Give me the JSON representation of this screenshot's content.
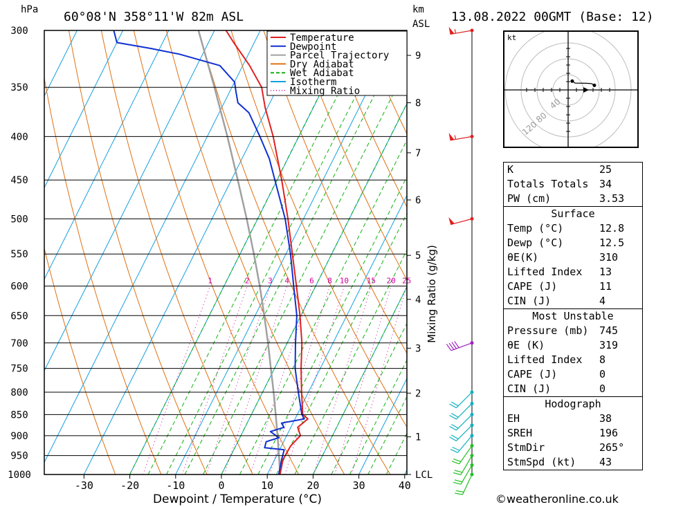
{
  "header": {
    "pressure_unit": "hPa",
    "location": "60°08'N 358°11'W 82m ASL",
    "km_label": "km",
    "asl_label": "ASL",
    "datetime": "13.08.2022 00GMT (Base: 12)"
  },
  "credit": "©weatheronline.co.uk",
  "colors": {
    "temperature": "#e02020",
    "dewpoint": "#1030d0",
    "parcel": "#a0a0a0",
    "dry_adiabat": "#e07010",
    "wet_adiabat": "#10b010",
    "isotherm": "#10a0e0",
    "mixing_ratio": "#d000a0"
  },
  "chart_data": {
    "type": "skew-t",
    "xlabel": "Dewpoint / Temperature (°C)",
    "ylabel_left": "hPa",
    "ylabel_right": "Mixing Ratio (g/kg)",
    "pressure_levels": [
      300,
      350,
      400,
      450,
      500,
      550,
      600,
      650,
      700,
      750,
      800,
      850,
      900,
      950,
      1000
    ],
    "temperature_ticks": [
      -30,
      -20,
      -10,
      0,
      10,
      20,
      30,
      40
    ],
    "km_ticks": [
      {
        "label": "9",
        "p": 321
      },
      {
        "label": "8",
        "p": 365
      },
      {
        "label": "7",
        "p": 418
      },
      {
        "label": "6",
        "p": 475
      },
      {
        "label": "5",
        "p": 552
      },
      {
        "label": "4",
        "p": 622
      },
      {
        "label": "3",
        "p": 710
      },
      {
        "label": "2",
        "p": 802
      },
      {
        "label": "1",
        "p": 903
      },
      {
        "label": "LCL",
        "p": 1000
      }
    ],
    "mixing_ratio_labels": [
      "1",
      "2",
      "3",
      "4",
      "6",
      "8",
      "10",
      "15",
      "20",
      "25"
    ],
    "legend": [
      {
        "name": "Temperature",
        "key": "temperature"
      },
      {
        "name": "Dewpoint",
        "key": "dewpoint"
      },
      {
        "name": "Parcel Trajectory",
        "key": "parcel"
      },
      {
        "name": "Dry Adiabat",
        "key": "dry_adiabat"
      },
      {
        "name": "Wet Adiabat",
        "key": "wet_adiabat"
      },
      {
        "name": "Isotherm",
        "key": "isotherm"
      },
      {
        "name": "Mixing Ratio",
        "key": "mixing_ratio"
      }
    ],
    "series": [
      {
        "name": "Temperature",
        "key": "temperature",
        "points": [
          [
            1000,
            12.8
          ],
          [
            960,
            11.8
          ],
          [
            925,
            12.0
          ],
          [
            900,
            13.0
          ],
          [
            880,
            11.5
          ],
          [
            860,
            12.8
          ],
          [
            850,
            11.2
          ],
          [
            800,
            8.5
          ],
          [
            750,
            5.8
          ],
          [
            700,
            3.2
          ],
          [
            650,
            -0.2
          ],
          [
            600,
            -4.2
          ],
          [
            550,
            -8.6
          ],
          [
            500,
            -13.4
          ],
          [
            450,
            -19.0
          ],
          [
            400,
            -25.6
          ],
          [
            370,
            -30.5
          ],
          [
            350,
            -33.5
          ],
          [
            330,
            -38.5
          ],
          [
            310,
            -44.5
          ],
          [
            300,
            -47.5
          ]
        ]
      },
      {
        "name": "Dewpoint",
        "key": "dewpoint",
        "points": [
          [
            1000,
            12.5
          ],
          [
            960,
            11.5
          ],
          [
            935,
            11.0
          ],
          [
            930,
            6.5
          ],
          [
            915,
            6.2
          ],
          [
            905,
            8.5
          ],
          [
            890,
            6.0
          ],
          [
            880,
            8.5
          ],
          [
            870,
            7.5
          ],
          [
            860,
            12.0
          ],
          [
            850,
            11.0
          ],
          [
            800,
            7.8
          ],
          [
            750,
            4.5
          ],
          [
            700,
            1.8
          ],
          [
            650,
            -0.9
          ],
          [
            600,
            -4.8
          ],
          [
            550,
            -9.0
          ],
          [
            500,
            -14.0
          ],
          [
            450,
            -20.5
          ],
          [
            425,
            -24.0
          ],
          [
            400,
            -28.5
          ],
          [
            375,
            -33.5
          ],
          [
            365,
            -37.0
          ],
          [
            355,
            -38.5
          ],
          [
            345,
            -40.0
          ],
          [
            330,
            -45.0
          ],
          [
            320,
            -55.0
          ],
          [
            315,
            -62.0
          ],
          [
            310,
            -70.0
          ],
          [
            300,
            -72.0
          ]
        ]
      },
      {
        "name": "Parcel Trajectory",
        "key": "parcel",
        "points": [
          [
            1000,
            12.8
          ],
          [
            950,
            10.5
          ],
          [
            900,
            8.0
          ],
          [
            850,
            5.3
          ],
          [
            800,
            2.4
          ],
          [
            750,
            -0.8
          ],
          [
            700,
            -4.2
          ],
          [
            650,
            -8.0
          ],
          [
            600,
            -12.2
          ],
          [
            550,
            -17.0
          ],
          [
            500,
            -22.4
          ],
          [
            450,
            -28.6
          ],
          [
            400,
            -35.6
          ],
          [
            350,
            -43.8
          ],
          [
            300,
            -53.5
          ]
        ]
      }
    ],
    "hodograph": {
      "unit_label": "kt",
      "ring_labels": [
        "40",
        "80",
        "120"
      ]
    },
    "wind_barbs": [
      {
        "p": 300,
        "dir": 260,
        "kt": 55
      },
      {
        "p": 400,
        "dir": 260,
        "kt": 55
      },
      {
        "p": 500,
        "dir": 255,
        "kt": 50
      },
      {
        "p": 700,
        "dir": 250,
        "kt": 40
      },
      {
        "p": 800,
        "dir": 225,
        "kt": 20
      },
      {
        "p": 825,
        "dir": 225,
        "kt": 20
      },
      {
        "p": 850,
        "dir": 225,
        "kt": 20
      },
      {
        "p": 875,
        "dir": 225,
        "kt": 20
      },
      {
        "p": 900,
        "dir": 220,
        "kt": 20
      },
      {
        "p": 925,
        "dir": 215,
        "kt": 20
      },
      {
        "p": 950,
        "dir": 210,
        "kt": 20
      },
      {
        "p": 975,
        "dir": 210,
        "kt": 20
      },
      {
        "p": 1000,
        "dir": 205,
        "kt": 20
      }
    ]
  },
  "indices": {
    "k": {
      "label": "K",
      "value": "25"
    },
    "totals": {
      "label": "Totals Totals",
      "value": "34"
    },
    "pw": {
      "label": "PW (cm)",
      "value": "3.53"
    },
    "surface": {
      "title": "Surface",
      "temp": {
        "label": "Temp (°C)",
        "value": "12.8"
      },
      "dewp": {
        "label": "Dewp (°C)",
        "value": "12.5"
      },
      "theta_e": {
        "label": "θE(K)",
        "value": "310"
      },
      "lifted": {
        "label": "Lifted Index",
        "value": "13"
      },
      "cape": {
        "label": "CAPE (J)",
        "value": "11"
      },
      "cin": {
        "label": "CIN (J)",
        "value": "4"
      }
    },
    "unstable": {
      "title": "Most Unstable",
      "pressure": {
        "label": "Pressure (mb)",
        "value": "745"
      },
      "theta_e": {
        "label": "θE (K)",
        "value": "319"
      },
      "lifted": {
        "label": "Lifted Index",
        "value": "8"
      },
      "cape": {
        "label": "CAPE (J)",
        "value": "0"
      },
      "cin": {
        "label": "CIN (J)",
        "value": "0"
      }
    },
    "hodograph": {
      "title": "Hodograph",
      "eh": {
        "label": "EH",
        "value": "38"
      },
      "sreh": {
        "label": "SREH",
        "value": "196"
      },
      "stmdir": {
        "label": "StmDir",
        "value": "265°"
      },
      "stmspd": {
        "label": "StmSpd (kt)",
        "value": "43"
      }
    }
  }
}
